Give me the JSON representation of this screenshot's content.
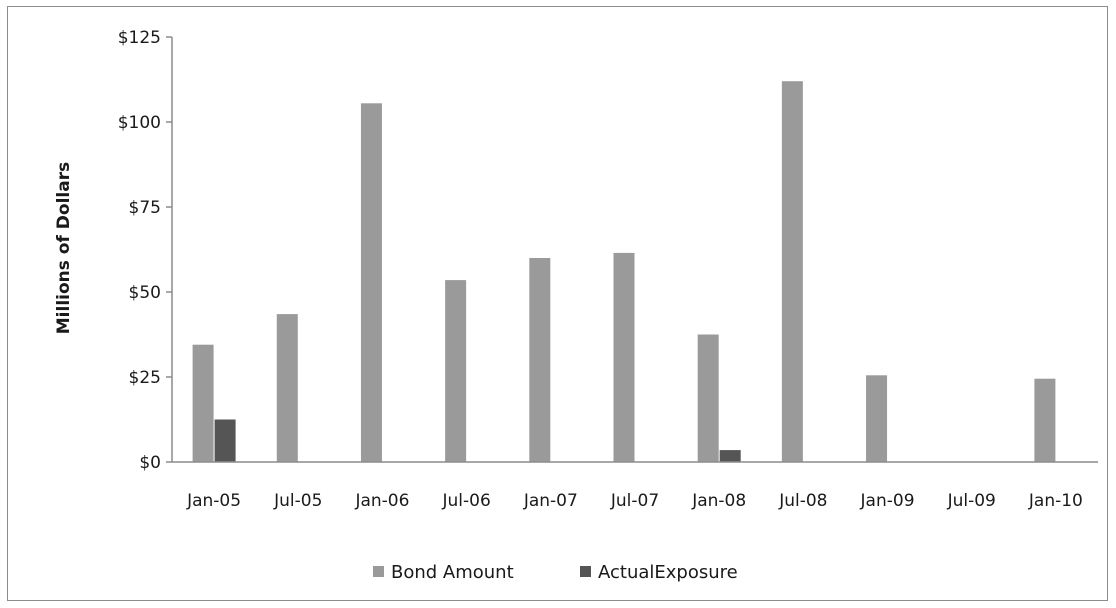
{
  "chart_data": {
    "type": "bar",
    "ylabel": "Millions of Dollars",
    "ylim": [
      0,
      125
    ],
    "yticks": [
      0,
      25,
      50,
      75,
      100,
      125
    ],
    "ytick_labels": [
      "$0",
      "$25",
      "$50",
      "$75",
      "$100",
      "$125"
    ],
    "grid": false,
    "legend_position": "bottom",
    "categories": [
      "Jan-05",
      "Jul-05",
      "Jan-06",
      "Jul-06",
      "Jan-07",
      "Jul-07",
      "Jan-08",
      "Jul-08",
      "Jan-09",
      "Jul-09",
      "Jan-10"
    ],
    "series": [
      {
        "name": "Bond Amount",
        "color": "#9a9a9a",
        "values": [
          34.5,
          43.5,
          105.5,
          53.5,
          60,
          61.5,
          37.5,
          112,
          25.5,
          0,
          24.5
        ]
      },
      {
        "name": "ActualExposure",
        "color": "#555555",
        "values": [
          12.5,
          0,
          0,
          0,
          0,
          0,
          3.5,
          0,
          0,
          0,
          0
        ]
      }
    ]
  }
}
